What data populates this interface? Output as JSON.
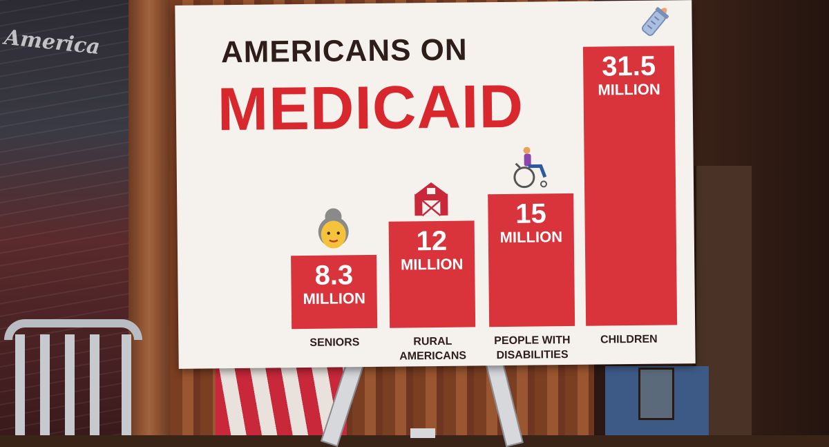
{
  "background": {
    "wall_text": "America"
  },
  "poster": {
    "title_line1": "AMERICANS ON",
    "title_line2": "MEDICAID",
    "accent_color": "#d9333b",
    "title_color": "#2e1e1a"
  },
  "chart_data": {
    "type": "bar",
    "title": "AMERICANS ON MEDICAID",
    "categories": [
      "SENIORS",
      "RURAL AMERICANS",
      "PEOPLE WITH DISABILITIES",
      "CHILDREN"
    ],
    "category_lines": [
      [
        "SENIORS"
      ],
      [
        "RURAL",
        "AMERICANS"
      ],
      [
        "PEOPLE WITH",
        "DISABILITIES"
      ],
      [
        "CHILDREN"
      ]
    ],
    "values": [
      8.3,
      12,
      15,
      31.5
    ],
    "value_labels": [
      "8.3",
      "12",
      "15",
      "31.5"
    ],
    "unit_label": "MILLION",
    "icons": [
      "senior-woman-icon",
      "barn-icon",
      "wheelchair-user-icon",
      "baby-bottle-icon"
    ],
    "bar_color": "#d9333b",
    "grid": false,
    "legend": "none"
  }
}
